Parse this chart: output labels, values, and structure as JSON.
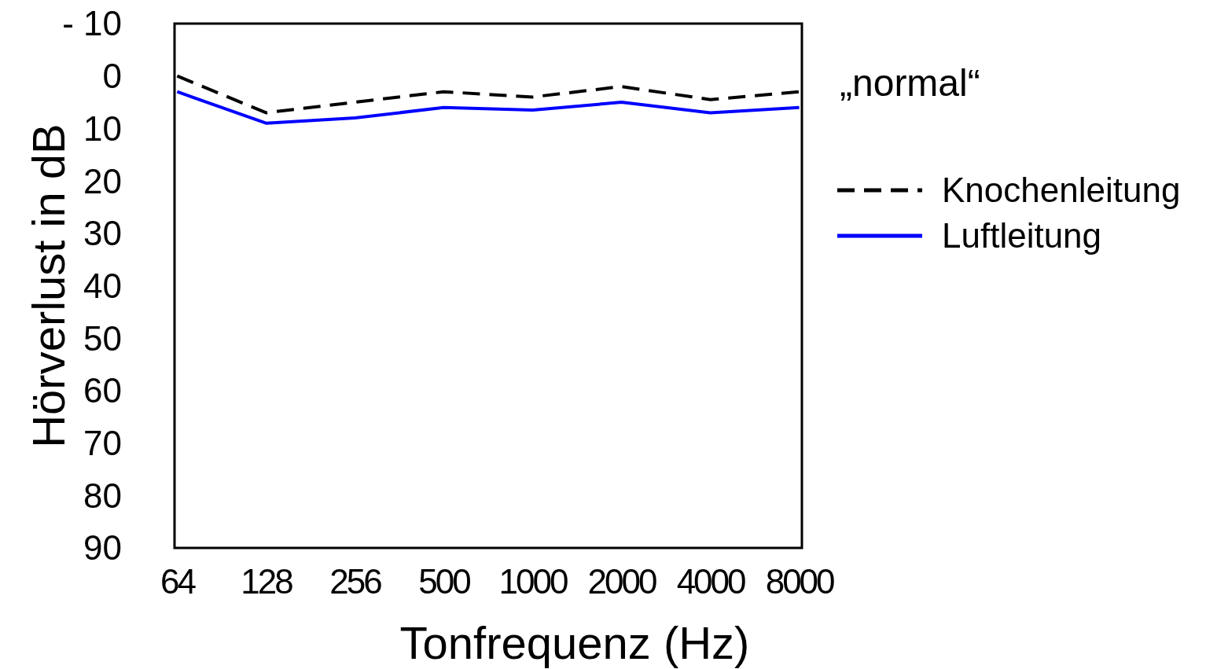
{
  "chart_data": {
    "type": "line",
    "xlabel": "Tonfrequenz (Hz)",
    "ylabel": "Hörverlust in dB",
    "categories": [
      "64",
      "128",
      "256",
      "500",
      "1000",
      "2000",
      "4000",
      "8000"
    ],
    "series": [
      {
        "name": "Knochenleitung",
        "color": "#000000",
        "line_style": "dashed",
        "values": [
          0,
          7,
          5,
          3,
          4,
          2,
          4.5,
          3
        ]
      },
      {
        "name": "Luftleitung",
        "color": "#0000ff",
        "line_style": "solid",
        "values": [
          3,
          9,
          8,
          6,
          6.5,
          5,
          7,
          6
        ]
      }
    ],
    "ylim": [
      90,
      -10
    ],
    "yticks": [
      {
        "value": -10,
        "label": "- 10"
      },
      0,
      10,
      20,
      30,
      40,
      50,
      60,
      70,
      80,
      90
    ],
    "annotations": [
      "„normal“"
    ],
    "legend": "right",
    "grid": false,
    "marker": "none"
  }
}
